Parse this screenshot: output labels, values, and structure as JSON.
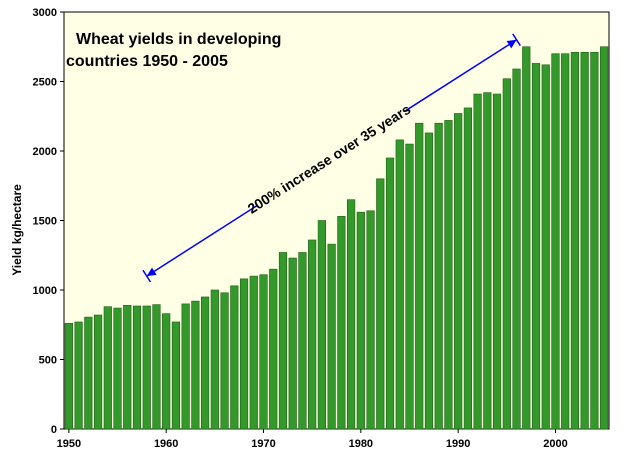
{
  "chart_data": {
    "type": "bar",
    "title_lines": [
      "Wheat yields in developing",
      "countries 1950 - 2005"
    ],
    "xlabel": "",
    "ylabel": "Yield kg/hectare",
    "xlim": [
      1950,
      2005
    ],
    "ylim": [
      0,
      3000
    ],
    "yticks": [
      0,
      500,
      1000,
      1500,
      2000,
      2500,
      3000
    ],
    "xticks": [
      1950,
      1960,
      1970,
      1980,
      1990,
      2000
    ],
    "grid": false,
    "legend": "none",
    "annotation": "200% increase over 35 years",
    "annotation_arrow": {
      "from_year": 1958,
      "from_value": 1100,
      "to_year": 1996,
      "to_value": 2800
    },
    "colors": {
      "bar": "#33992a",
      "bar_edge": "#1e5e16",
      "plot_bg": "#ffffe5",
      "arrow": "#0000ff"
    },
    "x": [
      1950,
      1951,
      1952,
      1953,
      1954,
      1955,
      1956,
      1957,
      1958,
      1959,
      1960,
      1961,
      1962,
      1963,
      1964,
      1965,
      1966,
      1967,
      1968,
      1969,
      1970,
      1971,
      1972,
      1973,
      1974,
      1975,
      1976,
      1977,
      1978,
      1979,
      1980,
      1981,
      1982,
      1983,
      1984,
      1985,
      1986,
      1987,
      1988,
      1989,
      1990,
      1991,
      1992,
      1993,
      1994,
      1995,
      1996,
      1997,
      1998,
      1999,
      2000,
      2001,
      2002,
      2003,
      2004,
      2005
    ],
    "values": [
      760,
      770,
      805,
      820,
      880,
      870,
      890,
      885,
      885,
      895,
      830,
      770,
      900,
      920,
      950,
      1000,
      980,
      1030,
      1080,
      1100,
      1110,
      1150,
      1270,
      1230,
      1270,
      1360,
      1500,
      1330,
      1530,
      1650,
      1560,
      1570,
      1800,
      1950,
      2080,
      2050,
      2200,
      2130,
      2200,
      2220,
      2270,
      2310,
      2410,
      2420,
      2410,
      2520,
      2590,
      2750,
      2630,
      2620,
      2700,
      2700,
      2710,
      2710,
      2710,
      2750
    ]
  }
}
